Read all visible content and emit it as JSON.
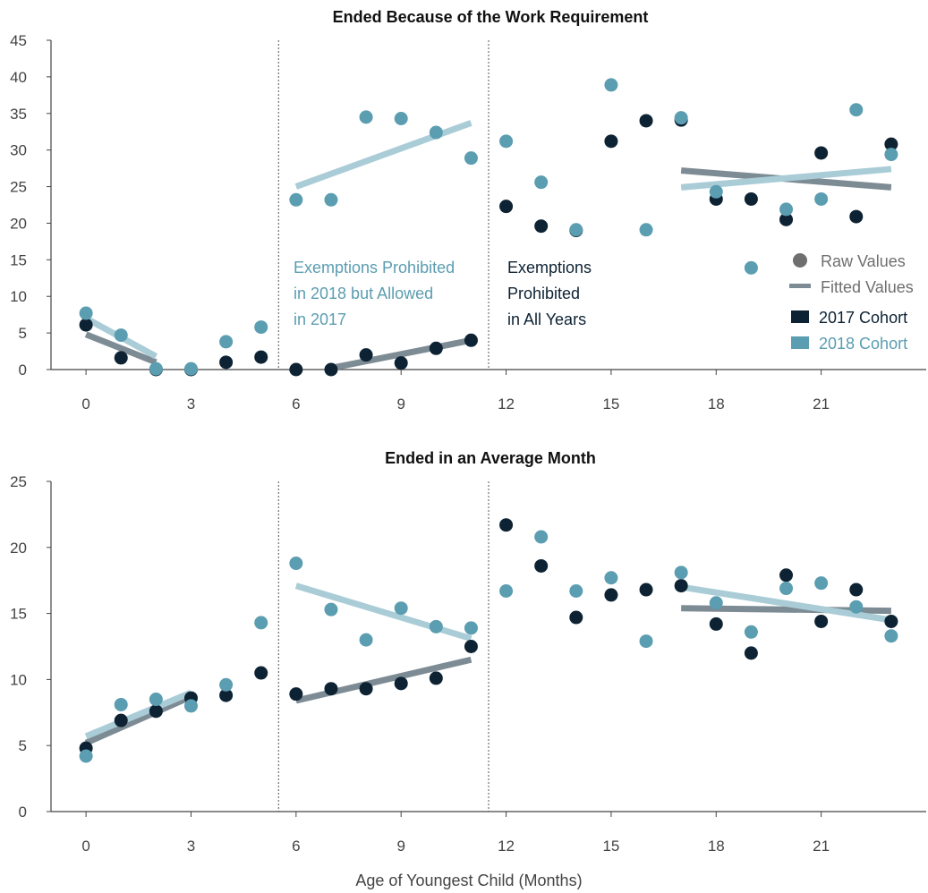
{
  "colors": {
    "cohort_2017": "#0d2233",
    "cohort_2018": "#5b9db1",
    "fit_2017": "#7d8b94",
    "fit_2018": "#a9ccd7",
    "legend_raw": "#6f6f6f",
    "legend_fitted": "#7d8b94",
    "axis": "#444444"
  },
  "x_axis_label": "Age of Youngest Child (Months)",
  "legend": {
    "raw_label": "Raw Values",
    "fitted_label": "Fitted Values",
    "cohort_2017_label": "2017 Cohort",
    "cohort_2018_label": "2018 Cohort"
  },
  "annotations": {
    "allowed_2017": [
      "Exemptions Prohibited",
      "in 2018 but Allowed",
      "in 2017"
    ],
    "prohibited_all": [
      "Exemptions",
      "Prohibited",
      "in All Years"
    ]
  },
  "chart_data": [
    {
      "type": "scatter",
      "title": "Ended Because of the Work Requirement",
      "xlabel": "",
      "ylabel": "",
      "xlim": [
        -1,
        24
      ],
      "ylim": [
        0,
        45
      ],
      "xticks": [
        0,
        3,
        6,
        9,
        12,
        15,
        18,
        21
      ],
      "yticks": [
        0,
        5,
        10,
        15,
        20,
        25,
        30,
        35,
        40,
        45
      ],
      "dividers": [
        5.5,
        11.5
      ],
      "series": [
        {
          "name": "2017 Cohort",
          "x": [
            0,
            1,
            2,
            3,
            4,
            5,
            6,
            7,
            8,
            9,
            10,
            11,
            12,
            13,
            14,
            15,
            16,
            17,
            18,
            19,
            20,
            21,
            22,
            23
          ],
          "y": [
            6.1,
            1.6,
            0,
            0,
            1.0,
            1.7,
            0,
            0,
            2.0,
            0.9,
            2.9,
            4.0,
            22.3,
            19.6,
            19.0,
            31.2,
            34.0,
            34.1,
            23.3,
            23.3,
            20.5,
            29.6,
            20.9,
            30.8
          ]
        },
        {
          "name": "2018 Cohort",
          "x": [
            0,
            1,
            2,
            3,
            4,
            5,
            6,
            7,
            8,
            9,
            10,
            11,
            12,
            13,
            14,
            15,
            16,
            17,
            18,
            19,
            20,
            21,
            22,
            23
          ],
          "y": [
            7.7,
            4.7,
            0.1,
            0.1,
            3.8,
            5.8,
            23.2,
            23.2,
            34.5,
            34.3,
            32.4,
            28.9,
            31.2,
            25.6,
            19.1,
            38.9,
            19.1,
            34.4,
            24.3,
            13.9,
            21.9,
            23.3,
            35.5,
            29.4
          ]
        }
      ],
      "fitted": [
        {
          "cohort": "2017 Cohort",
          "x": [
            0,
            2
          ],
          "y": [
            4.8,
            1.0
          ]
        },
        {
          "cohort": "2018 Cohort",
          "x": [
            0,
            2
          ],
          "y": [
            7.0,
            1.8
          ]
        },
        {
          "cohort": "2017 Cohort",
          "x": [
            7,
            11
          ],
          "y": [
            0.2,
            4.0
          ]
        },
        {
          "cohort": "2018 Cohort",
          "x": [
            6,
            11
          ],
          "y": [
            25.0,
            33.7
          ]
        },
        {
          "cohort": "2017 Cohort",
          "x": [
            17,
            23
          ],
          "y": [
            27.2,
            24.9
          ]
        },
        {
          "cohort": "2018 Cohort",
          "x": [
            17,
            23
          ],
          "y": [
            24.9,
            27.4
          ]
        }
      ]
    },
    {
      "type": "scatter",
      "title": "Ended in an Average Month",
      "xlabel": "Age of Youngest Child (Months)",
      "ylabel": "",
      "xlim": [
        -1,
        24
      ],
      "ylim": [
        0,
        25
      ],
      "xticks": [
        0,
        3,
        6,
        9,
        12,
        15,
        18,
        21
      ],
      "yticks": [
        0,
        5,
        10,
        15,
        20,
        25
      ],
      "dividers": [
        5.5,
        11.5
      ],
      "series": [
        {
          "name": "2017 Cohort",
          "x": [
            0,
            1,
            2,
            3,
            4,
            5,
            6,
            7,
            8,
            9,
            10,
            11,
            12,
            13,
            14,
            15,
            16,
            17,
            18,
            19,
            20,
            21,
            22,
            23
          ],
          "y": [
            4.8,
            6.9,
            7.6,
            8.6,
            8.8,
            10.5,
            8.9,
            9.3,
            9.3,
            9.7,
            10.1,
            12.5,
            21.7,
            18.6,
            14.7,
            16.4,
            16.8,
            17.1,
            14.2,
            12.0,
            17.9,
            14.4,
            16.8,
            14.4
          ]
        },
        {
          "name": "2018 Cohort",
          "x": [
            0,
            1,
            2,
            3,
            4,
            5,
            6,
            7,
            8,
            9,
            10,
            11,
            12,
            13,
            14,
            15,
            16,
            17,
            18,
            19,
            20,
            21,
            22,
            23
          ],
          "y": [
            4.2,
            8.1,
            8.5,
            8.0,
            9.6,
            14.3,
            18.8,
            15.3,
            13.0,
            15.4,
            14.0,
            13.9,
            16.7,
            20.8,
            16.7,
            17.7,
            12.9,
            18.1,
            15.8,
            13.6,
            16.9,
            17.3,
            15.5,
            13.3
          ]
        }
      ],
      "fitted": [
        {
          "cohort": "2017 Cohort",
          "x": [
            0,
            3
          ],
          "y": [
            5.2,
            8.7
          ]
        },
        {
          "cohort": "2018 Cohort",
          "x": [
            0,
            3
          ],
          "y": [
            5.7,
            9.0
          ]
        },
        {
          "cohort": "2017 Cohort",
          "x": [
            6,
            11
          ],
          "y": [
            8.4,
            11.5
          ]
        },
        {
          "cohort": "2018 Cohort",
          "x": [
            6,
            11
          ],
          "y": [
            17.1,
            13.1
          ]
        },
        {
          "cohort": "2017 Cohort",
          "x": [
            17,
            23
          ],
          "y": [
            15.4,
            15.2
          ]
        },
        {
          "cohort": "2018 Cohort",
          "x": [
            17,
            23
          ],
          "y": [
            17.0,
            14.5
          ]
        }
      ]
    }
  ]
}
